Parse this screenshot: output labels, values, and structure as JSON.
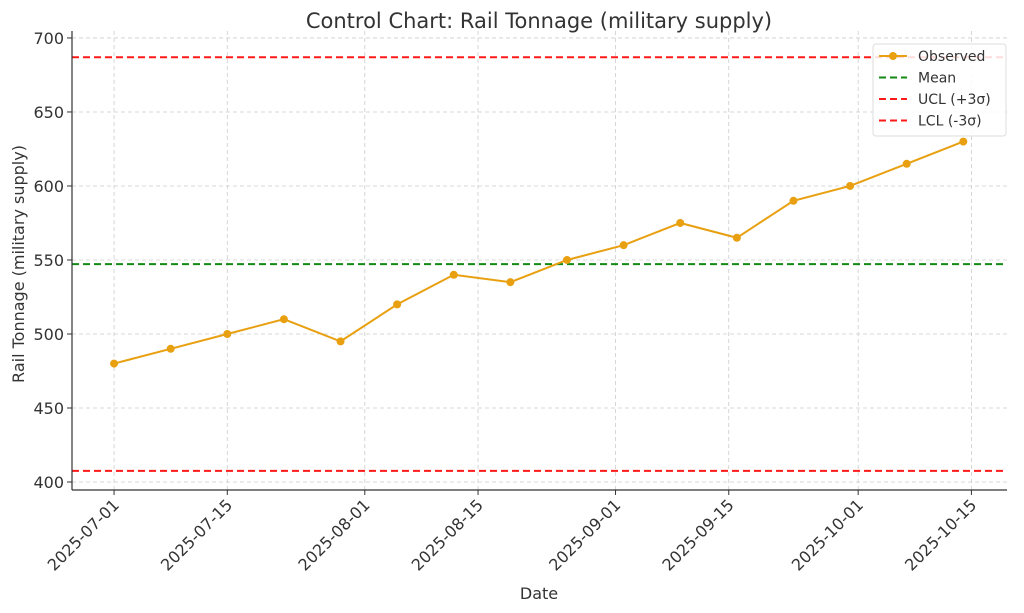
{
  "chart_data": {
    "type": "line",
    "title": "Control Chart: Rail Tonnage (military supply)",
    "xlabel": "Date",
    "ylabel": "Rail Tonnage (military supply)",
    "x_start_date": "2025-07-01",
    "x_step_days": 7,
    "x": [
      "2025-07-01",
      "2025-07-08",
      "2025-07-15",
      "2025-07-22",
      "2025-07-29",
      "2025-08-05",
      "2025-08-12",
      "2025-08-19",
      "2025-08-26",
      "2025-09-02",
      "2025-09-09",
      "2025-09-16",
      "2025-09-23",
      "2025-09-30",
      "2025-10-07",
      "2025-10-14"
    ],
    "series": [
      {
        "name": "Observed",
        "values": [
          480,
          490,
          500,
          510,
          495,
          520,
          540,
          535,
          550,
          560,
          575,
          565,
          590,
          600,
          615,
          630
        ],
        "color": "#E8A010"
      }
    ],
    "reference_lines": [
      {
        "name": "Mean",
        "value": 547.2,
        "color": "#138a13"
      },
      {
        "name": "UCL (+3σ)",
        "value": 687,
        "color": "#ff1a1a"
      },
      {
        "name": "LCL (-3σ)",
        "value": 407.5,
        "color": "#ff1a1a"
      }
    ],
    "legend": [
      "Observed",
      "Mean",
      "UCL (+3σ)",
      "LCL (-3σ)"
    ],
    "legend_position": "top-right",
    "yticks": [
      400,
      450,
      500,
      550,
      600,
      650,
      700
    ],
    "xticks": [
      {
        "label": "2025-07-01",
        "day": 0
      },
      {
        "label": "2025-07-15",
        "day": 14
      },
      {
        "label": "2025-08-01",
        "day": 31
      },
      {
        "label": "2025-08-15",
        "day": 45
      },
      {
        "label": "2025-09-01",
        "day": 62
      },
      {
        "label": "2025-09-15",
        "day": 76
      },
      {
        "label": "2025-10-01",
        "day": 92
      },
      {
        "label": "2025-10-15",
        "day": 106
      }
    ],
    "ylim": [
      394.6,
      704.7
    ],
    "xlim_days": [
      -5.2,
      110.4
    ],
    "grid": true
  }
}
